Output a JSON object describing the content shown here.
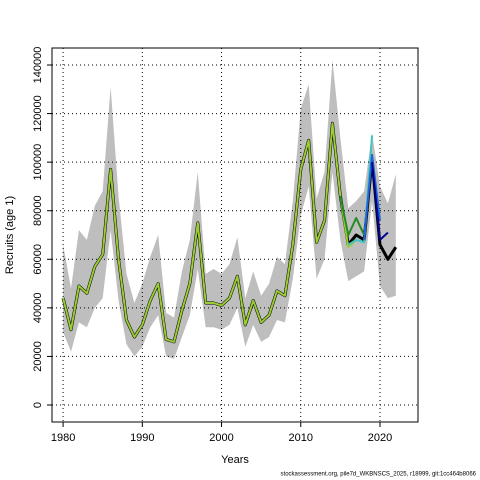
{
  "chart_data": {
    "type": "line",
    "x_label": "Years",
    "y_label": "Recruits (age 1)",
    "footer": "stockassessment.org, pile7d_WKBNSCS_2025, r18999, git:1cc464b8066",
    "x": [
      1980,
      1981,
      1982,
      1983,
      1984,
      1985,
      1986,
      1987,
      1988,
      1989,
      1990,
      1991,
      1992,
      1993,
      1994,
      1995,
      1996,
      1997,
      1998,
      1999,
      2000,
      2001,
      2002,
      2003,
      2004,
      2005,
      2006,
      2007,
      2008,
      2009,
      2010,
      2011,
      2012,
      2013,
      2014,
      2015,
      2016,
      2017,
      2018,
      2019,
      2020,
      2021,
      2022
    ],
    "band": {
      "color": "#bebebe",
      "upper": [
        66000,
        48000,
        72000,
        68000,
        82000,
        88000,
        131000,
        86000,
        54000,
        42000,
        50000,
        61000,
        70000,
        38000,
        36000,
        55000,
        68000,
        96000,
        54000,
        56000,
        54000,
        58000,
        69000,
        44000,
        55000,
        45000,
        50000,
        61000,
        58000,
        84000,
        122000,
        132000,
        85000,
        96000,
        142000,
        110000,
        81000,
        84000,
        88000,
        112000,
        90000,
        83000,
        95000
      ],
      "lower": [
        30000,
        22000,
        34000,
        32000,
        40000,
        44000,
        72000,
        43000,
        25000,
        20000,
        24000,
        32000,
        37000,
        20000,
        19000,
        28000,
        37000,
        56000,
        32000,
        32000,
        31000,
        33000,
        40000,
        24000,
        33000,
        26000,
        28000,
        35000,
        34000,
        52000,
        78000,
        90000,
        52000,
        60000,
        96000,
        68000,
        51000,
        53000,
        55000,
        84000,
        49000,
        44000,
        45000
      ]
    },
    "series": [
      {
        "color": "#000000",
        "width": 3,
        "values": [
          44000,
          31000,
          49000,
          46000,
          57000,
          62000,
          97000,
          60000,
          35000,
          28000,
          33000,
          43000,
          50000,
          27000,
          26000,
          39000,
          50000,
          75000,
          42000,
          42000,
          41000,
          44000,
          53000,
          33000,
          43000,
          34000,
          37000,
          47000,
          45000,
          66000,
          97000,
          109000,
          67000,
          76000,
          116000,
          86000,
          66000,
          70000,
          68000,
          101000,
          66000,
          60000,
          65000
        ]
      },
      {
        "color": "#9acd32",
        "width": 2,
        "values": [
          44000,
          31000,
          49000,
          46000,
          57000,
          62000,
          97000,
          60000,
          35000,
          28000,
          33000,
          43000,
          50000,
          27000,
          26000,
          39000,
          50000,
          75000,
          42000,
          42000,
          41000,
          44000,
          53000,
          33000,
          43000,
          34000,
          37000,
          47000,
          45000,
          66000,
          97000,
          109000,
          67000,
          76000,
          116000,
          86000,
          65000,
          68000,
          null,
          null,
          null,
          null,
          null
        ]
      },
      {
        "color": "#228b22",
        "width": 2,
        "values": [
          null,
          null,
          null,
          null,
          null,
          null,
          null,
          null,
          null,
          null,
          null,
          null,
          null,
          null,
          null,
          null,
          null,
          null,
          null,
          null,
          null,
          null,
          null,
          null,
          null,
          null,
          null,
          null,
          null,
          null,
          null,
          null,
          null,
          null,
          null,
          86000,
          70000,
          77000,
          70000,
          null,
          null,
          null,
          null
        ]
      },
      {
        "color": "#40c4c4",
        "width": 2,
        "values": [
          null,
          null,
          null,
          null,
          null,
          null,
          null,
          null,
          null,
          null,
          null,
          null,
          null,
          null,
          null,
          null,
          null,
          null,
          null,
          null,
          null,
          null,
          null,
          null,
          null,
          null,
          null,
          null,
          null,
          null,
          null,
          null,
          null,
          null,
          null,
          null,
          66000,
          68000,
          67000,
          111000,
          null,
          null,
          null
        ]
      },
      {
        "color": "#1e64dc",
        "width": 2,
        "values": [
          null,
          null,
          null,
          null,
          null,
          null,
          null,
          null,
          null,
          null,
          null,
          null,
          null,
          null,
          null,
          null,
          null,
          null,
          null,
          null,
          null,
          null,
          null,
          null,
          null,
          null,
          null,
          null,
          null,
          null,
          null,
          null,
          null,
          null,
          null,
          null,
          null,
          null,
          68000,
          103000,
          76000,
          null,
          null
        ]
      },
      {
        "color": "#00008b",
        "width": 2,
        "values": [
          null,
          null,
          null,
          null,
          null,
          null,
          null,
          null,
          null,
          null,
          null,
          null,
          null,
          null,
          null,
          null,
          null,
          null,
          null,
          null,
          null,
          null,
          null,
          null,
          null,
          null,
          null,
          null,
          null,
          null,
          null,
          null,
          null,
          null,
          null,
          null,
          null,
          null,
          null,
          100000,
          68000,
          71000,
          null
        ]
      }
    ],
    "xlim": [
      1978.6,
      2024.8
    ],
    "ylim": [
      -7000,
      147000
    ],
    "xticks": [
      1980,
      1990,
      2000,
      2010,
      2020
    ],
    "yticks": [
      0,
      20000,
      40000,
      60000,
      80000,
      100000,
      120000,
      140000
    ],
    "grid": true
  }
}
